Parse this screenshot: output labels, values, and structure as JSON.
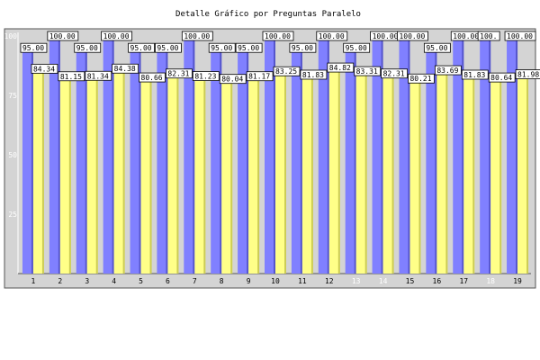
{
  "chart_data": {
    "type": "bar",
    "title": "Detalle Gráfico por Preguntas Paralelo",
    "categories": [
      "1",
      "2",
      "3",
      "4",
      "5",
      "6",
      "7",
      "8",
      "9",
      "10",
      "11",
      "12",
      "13",
      "14",
      "15",
      "16",
      "17",
      "18",
      "19"
    ],
    "ylim": [
      0,
      100
    ],
    "yticks": [
      "25",
      "50",
      "75",
      "100"
    ],
    "grid": false,
    "legend": "none",
    "colors": {
      "series_a": "#8080ff",
      "series_b": "#ffff88",
      "plot_bg": "#d4d4d4",
      "label_box": "#ffffff"
    },
    "category_label_colors": {
      "13": "#ffffff",
      "14": "#ffffff",
      "18": "#ffffff"
    },
    "series": [
      {
        "values": [
          95.0,
          100.0,
          95.0,
          100.0,
          95.0,
          95.0,
          100.0,
          95.0,
          95.0,
          100.0,
          95.0,
          100.0,
          95.0,
          100.0,
          100.0,
          95.0,
          100.0,
          100.0,
          100.0
        ],
        "labels": [
          "95.00",
          "100.00",
          "95.00",
          "100.00",
          "95.00",
          "95.00",
          "100.00",
          "95.00",
          "95.00",
          "100.00",
          "95.00",
          "100.00",
          "95.00",
          "100.00",
          "100.00",
          "95.00",
          "100.00",
          "100.",
          "100.00"
        ]
      },
      {
        "values": [
          84.34,
          81.15,
          81.34,
          84.38,
          80.66,
          82.31,
          81.23,
          80.04,
          81.17,
          83.25,
          81.83,
          84.82,
          83.31,
          82.31,
          80.21,
          83.69,
          81.83,
          80.64,
          81.98
        ],
        "labels": [
          "84.34",
          "81.15",
          "81.34",
          "84.38",
          "80.66",
          "82.31",
          "81.23",
          "80.04",
          "81.17",
          "83.25",
          "81.83",
          "84.82",
          "83.31",
          "82.31",
          "80.21",
          "83.69",
          "81.83",
          "80.64",
          "81.98"
        ]
      }
    ]
  }
}
